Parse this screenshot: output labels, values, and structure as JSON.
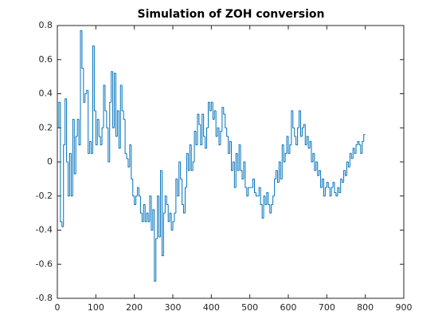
{
  "chart_data": {
    "type": "stairs",
    "title": "Simulation of ZOH conversion",
    "x": [
      0,
      4,
      8,
      12,
      16,
      20,
      24,
      28,
      32,
      36,
      40,
      44,
      48,
      52,
      56,
      60,
      64,
      68,
      72,
      76,
      80,
      84,
      88,
      92,
      96,
      100,
      104,
      108,
      112,
      116,
      120,
      124,
      128,
      132,
      136,
      140,
      144,
      148,
      152,
      156,
      160,
      164,
      168,
      172,
      176,
      180,
      184,
      188,
      192,
      196,
      200,
      204,
      208,
      212,
      216,
      220,
      224,
      228,
      232,
      236,
      240,
      244,
      248,
      252,
      256,
      260,
      264,
      268,
      272,
      276,
      280,
      284,
      288,
      292,
      296,
      300,
      304,
      308,
      312,
      316,
      320,
      324,
      328,
      332,
      336,
      340,
      344,
      348,
      352,
      356,
      360,
      364,
      368,
      372,
      376,
      380,
      384,
      388,
      392,
      396,
      400,
      404,
      408,
      412,
      416,
      420,
      424,
      428,
      432,
      436,
      440,
      444,
      448,
      452,
      456,
      460,
      464,
      468,
      472,
      476,
      480,
      484,
      488,
      492,
      496,
      500,
      504,
      508,
      512,
      516,
      520,
      524,
      528,
      532,
      536,
      540,
      544,
      548,
      552,
      556,
      560,
      564,
      568,
      572,
      576,
      580,
      584,
      588,
      592,
      596,
      600,
      604,
      608,
      612,
      616,
      620,
      624,
      628,
      632,
      636,
      640,
      644,
      648,
      652,
      656,
      660,
      664,
      668,
      672,
      676,
      680,
      684,
      688,
      692,
      696,
      700,
      704,
      708,
      712,
      716,
      720,
      724,
      728,
      732,
      736,
      740,
      744,
      748,
      752,
      756,
      760,
      764,
      768,
      772,
      776,
      780,
      784,
      788,
      792,
      796,
      800
    ],
    "series": [
      {
        "color": "#0072bd",
        "values": [
          0.2,
          0.35,
          -0.35,
          -0.38,
          0.1,
          0.37,
          0.0,
          -0.2,
          0.05,
          -0.2,
          0.25,
          -0.07,
          0.15,
          0.25,
          0.1,
          0.77,
          0.55,
          0.35,
          0.4,
          0.42,
          0.05,
          0.12,
          0.05,
          0.68,
          0.3,
          0.1,
          0.25,
          0.15,
          0.1,
          0.2,
          0.45,
          0.3,
          0.2,
          0.0,
          0.35,
          0.53,
          0.2,
          0.52,
          0.15,
          0.3,
          0.08,
          0.45,
          0.3,
          0.25,
          0.05,
          0.02,
          -0.03,
          0.1,
          -0.1,
          -0.2,
          -0.25,
          -0.2,
          -0.15,
          -0.2,
          -0.3,
          -0.35,
          -0.25,
          -0.35,
          -0.3,
          -0.35,
          -0.2,
          -0.4,
          -0.28,
          -0.7,
          -0.45,
          -0.2,
          -0.44,
          -0.05,
          -0.55,
          -0.3,
          -0.2,
          -0.25,
          -0.35,
          -0.3,
          -0.4,
          -0.35,
          -0.3,
          -0.1,
          -0.2,
          0.0,
          -0.1,
          -0.25,
          -0.3,
          -0.15,
          0.05,
          -0.05,
          0.1,
          -0.05,
          0.0,
          0.18,
          0.1,
          0.28,
          0.22,
          0.1,
          0.28,
          0.15,
          0.08,
          0.2,
          0.35,
          0.3,
          0.35,
          0.25,
          0.3,
          0.15,
          0.2,
          0.1,
          0.18,
          0.32,
          0.28,
          0.2,
          0.15,
          0.05,
          0.12,
          -0.05,
          0.0,
          -0.15,
          0.05,
          -0.05,
          0.1,
          -0.05,
          -0.1,
          0.0,
          -0.15,
          -0.2,
          -0.15,
          -0.15,
          -0.15,
          -0.1,
          -0.18,
          -0.2,
          -0.2,
          -0.15,
          -0.25,
          -0.33,
          -0.2,
          -0.25,
          -0.18,
          -0.25,
          -0.3,
          -0.25,
          -0.2,
          -0.1,
          -0.05,
          -0.12,
          0.0,
          -0.1,
          0.1,
          0.0,
          0.05,
          0.15,
          0.05,
          0.1,
          0.3,
          0.2,
          0.15,
          0.1,
          0.2,
          0.3,
          0.15,
          0.2,
          0.22,
          0.1,
          0.15,
          0.08,
          0.12,
          0.0,
          0.05,
          -0.05,
          0.0,
          -0.08,
          -0.05,
          -0.15,
          -0.1,
          -0.2,
          -0.15,
          -0.12,
          -0.15,
          -0.2,
          -0.15,
          -0.12,
          -0.18,
          -0.2,
          -0.15,
          -0.18,
          -0.1,
          -0.12,
          -0.05,
          -0.08,
          0.0,
          -0.03,
          0.05,
          0.02,
          0.08,
          0.05,
          0.1,
          0.12,
          0.1,
          0.05,
          0.12,
          0.16,
          0.16
        ]
      }
    ],
    "xlim": [
      0,
      900
    ],
    "xticks": [
      0,
      100,
      200,
      300,
      400,
      500,
      600,
      700,
      800,
      900
    ],
    "ylim": [
      -0.8,
      0.8
    ],
    "yticks": [
      -0.8,
      -0.6,
      -0.4,
      -0.2,
      0,
      0.2,
      0.4,
      0.6,
      0.8
    ]
  }
}
